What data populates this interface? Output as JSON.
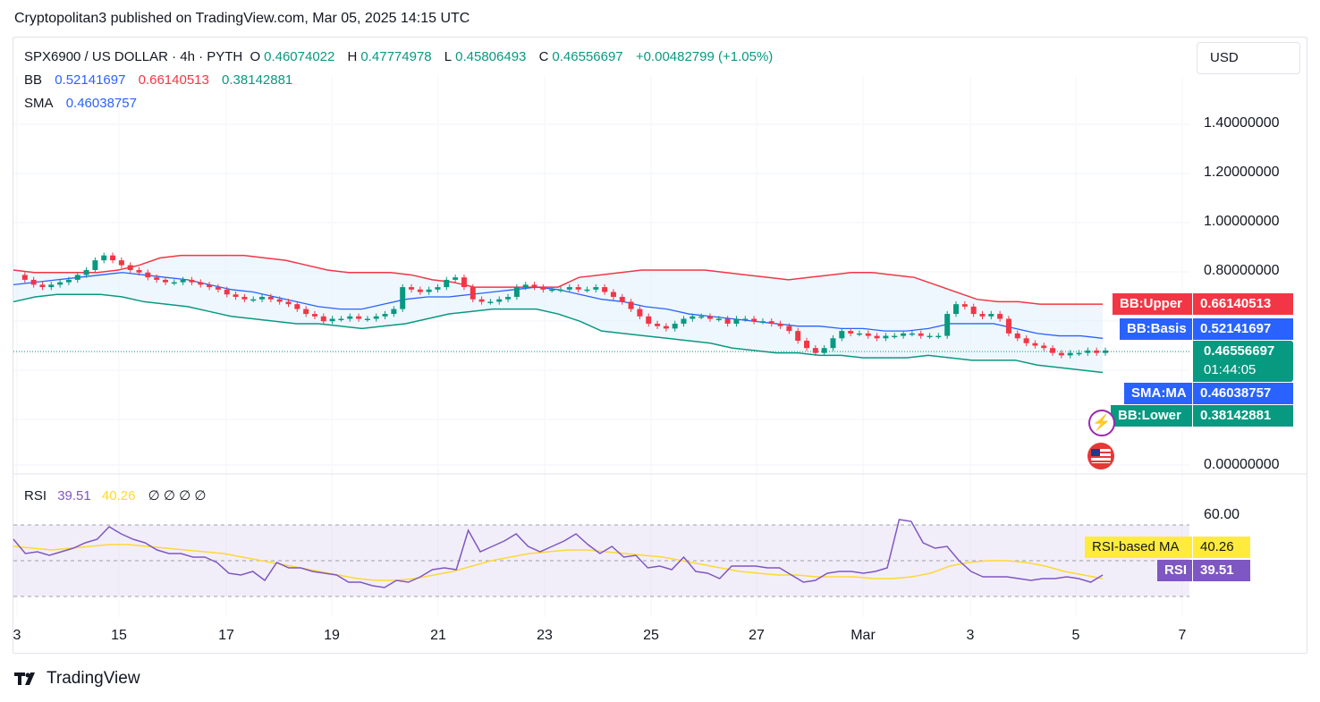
{
  "header": {
    "published": "Cryptopolitan3 published on TradingView.com, Mar 05, 2025 14:15 UTC"
  },
  "legend": {
    "symbol": "SPX6900 / US DOLLAR · 4h · PYTH",
    "o_label": "O",
    "o": "0.46074022",
    "h_label": "H",
    "h": "0.47774978",
    "l_label": "L",
    "l": "0.45806493",
    "c_label": "C",
    "c": "0.46556697",
    "change": "+0.00482799 (+1.05%)",
    "bb_label": "BB",
    "bb_basis": "0.52141697",
    "bb_upper": "0.66140513",
    "bb_lower": "0.38142881",
    "sma_label": "SMA",
    "sma": "0.46038757"
  },
  "currency_button": "USD",
  "price_axis": {
    "ticks": [
      "1.40000000",
      "1.20000000",
      "1.00000000",
      "0.80000000",
      "0.00000000"
    ]
  },
  "price_tags": {
    "bb_upper_label": "BB:Upper",
    "bb_upper_value": "0.66140513",
    "bb_basis_label": "BB:Basis",
    "bb_basis_value": "0.52141697",
    "last_price": "0.46556697",
    "countdown": "01:44:05",
    "sma_label": "SMA:MA",
    "sma_value": "0.46038757",
    "bb_lower_label": "BB:Lower",
    "bb_lower_value": "0.38142881"
  },
  "rsi_panel": {
    "legend_label": "RSI",
    "rsi_value": "39.51",
    "ma_value": "40.26",
    "empty_values": "∅ ∅ ∅ ∅",
    "axis_tick": "60.00",
    "ma_tag_label": "RSI-based MA",
    "ma_tag_value": "40.26",
    "rsi_tag_label": "RSI",
    "rsi_tag_value": "39.51"
  },
  "x_axis": {
    "labels": [
      "3",
      "15",
      "17",
      "19",
      "21",
      "23",
      "25",
      "27",
      "Mar",
      "3",
      "5",
      "7"
    ]
  },
  "footer": {
    "brand": "TradingView"
  },
  "colors": {
    "up": "#089981",
    "down": "#f23645",
    "bb_upper": "#f23645",
    "bb_basis": "#2962ff",
    "bb_lower": "#089981",
    "sma": "#2962ff",
    "rsi": "#7e57c2",
    "rsi_ma": "#fdd835",
    "band_fill": "#e3f2fd"
  },
  "chart_data": {
    "type": "candlestick",
    "interval": "4h",
    "x_axis_labels": [
      "3",
      "15",
      "17",
      "19",
      "21",
      "23",
      "25",
      "27",
      "Mar",
      "3",
      "5",
      "7"
    ],
    "y_axis_ticks": [
      0.0,
      0.8,
      1.0,
      1.2,
      1.4
    ],
    "close_series": [
      0.78,
      0.76,
      0.74,
      0.73,
      0.74,
      0.75,
      0.76,
      0.78,
      0.8,
      0.84,
      0.86,
      0.84,
      0.82,
      0.8,
      0.79,
      0.77,
      0.76,
      0.75,
      0.75,
      0.76,
      0.75,
      0.74,
      0.73,
      0.72,
      0.7,
      0.69,
      0.68,
      0.68,
      0.69,
      0.68,
      0.67,
      0.66,
      0.64,
      0.62,
      0.61,
      0.59,
      0.6,
      0.6,
      0.61,
      0.6,
      0.6,
      0.61,
      0.62,
      0.64,
      0.73,
      0.72,
      0.71,
      0.72,
      0.73,
      0.76,
      0.77,
      0.73,
      0.68,
      0.67,
      0.67,
      0.68,
      0.69,
      0.73,
      0.74,
      0.73,
      0.72,
      0.72,
      0.72,
      0.73,
      0.72,
      0.72,
      0.73,
      0.71,
      0.69,
      0.67,
      0.64,
      0.61,
      0.58,
      0.57,
      0.56,
      0.58,
      0.6,
      0.61,
      0.61,
      0.6,
      0.6,
      0.58,
      0.6,
      0.6,
      0.59,
      0.59,
      0.58,
      0.57,
      0.55,
      0.51,
      0.48,
      0.46,
      0.48,
      0.52,
      0.55,
      0.54,
      0.54,
      0.53,
      0.52,
      0.53,
      0.53,
      0.54,
      0.54,
      0.53,
      0.53,
      0.53,
      0.62,
      0.66,
      0.65,
      0.62,
      0.61,
      0.62,
      0.6,
      0.54,
      0.52,
      0.5,
      0.49,
      0.48,
      0.46,
      0.45,
      0.46,
      0.46,
      0.47,
      0.46,
      0.47
    ],
    "bb_upper_series": [
      0.8,
      0.79,
      0.79,
      0.79,
      0.79,
      0.8,
      0.82,
      0.85,
      0.86,
      0.86,
      0.86,
      0.86,
      0.85,
      0.84,
      0.82,
      0.8,
      0.79,
      0.79,
      0.79,
      0.78,
      0.76,
      0.75,
      0.73,
      0.73,
      0.73,
      0.73,
      0.73,
      0.77,
      0.78,
      0.79,
      0.8,
      0.8,
      0.8,
      0.8,
      0.79,
      0.78,
      0.77,
      0.76,
      0.77,
      0.78,
      0.79,
      0.79,
      0.78,
      0.77,
      0.74,
      0.71,
      0.68,
      0.67,
      0.67,
      0.66,
      0.66,
      0.66,
      0.66
    ],
    "bb_basis_series": [
      0.74,
      0.75,
      0.76,
      0.77,
      0.78,
      0.79,
      0.78,
      0.77,
      0.76,
      0.74,
      0.72,
      0.71,
      0.69,
      0.67,
      0.65,
      0.64,
      0.64,
      0.66,
      0.68,
      0.69,
      0.69,
      0.7,
      0.71,
      0.72,
      0.73,
      0.72,
      0.7,
      0.68,
      0.67,
      0.65,
      0.64,
      0.62,
      0.61,
      0.6,
      0.59,
      0.58,
      0.57,
      0.57,
      0.56,
      0.56,
      0.55,
      0.55,
      0.56,
      0.58,
      0.58,
      0.58,
      0.56,
      0.54,
      0.53,
      0.53,
      0.52
    ],
    "bb_lower_series": [
      0.67,
      0.69,
      0.7,
      0.7,
      0.7,
      0.69,
      0.67,
      0.66,
      0.65,
      0.63,
      0.61,
      0.6,
      0.59,
      0.58,
      0.58,
      0.57,
      0.56,
      0.57,
      0.58,
      0.6,
      0.62,
      0.63,
      0.64,
      0.64,
      0.64,
      0.62,
      0.59,
      0.55,
      0.54,
      0.53,
      0.52,
      0.51,
      0.5,
      0.48,
      0.47,
      0.46,
      0.46,
      0.45,
      0.45,
      0.44,
      0.44,
      0.44,
      0.45,
      0.44,
      0.43,
      0.43,
      0.43,
      0.41,
      0.4,
      0.39,
      0.38
    ],
    "rsi_series": [
      62,
      54,
      55,
      53,
      55,
      57,
      60,
      62,
      69,
      65,
      62,
      60,
      56,
      54,
      54,
      52,
      52,
      49,
      43,
      42,
      44,
      39,
      49,
      46,
      46,
      44,
      43,
      42,
      38,
      38,
      36,
      35,
      39,
      38,
      41,
      45,
      46,
      45,
      67,
      55,
      58,
      61,
      65,
      58,
      55,
      58,
      61,
      65,
      59,
      54,
      58,
      52,
      53,
      46,
      47,
      45,
      52,
      44,
      43,
      40,
      47,
      47,
      47,
      46,
      46,
      42,
      38,
      39,
      43,
      44,
      44,
      43,
      44,
      46,
      73,
      72,
      60,
      57,
      58,
      50,
      44,
      41,
      41,
      41,
      40,
      39,
      40,
      40,
      41,
      40,
      38,
      42
    ],
    "rsi_ma_series": [
      58,
      57,
      56,
      57,
      58,
      59,
      59,
      58,
      57,
      56,
      55,
      54,
      52,
      50,
      48,
      46,
      44,
      42,
      40,
      39,
      39,
      40,
      42,
      44,
      47,
      50,
      52,
      54,
      55,
      56,
      56,
      55,
      54,
      53,
      52,
      50,
      48,
      46,
      44,
      43,
      42,
      42,
      41,
      41,
      41,
      40,
      40,
      41,
      43,
      47,
      49,
      50,
      50,
      49,
      47,
      44,
      42,
      40
    ],
    "rsi_axis_tick": 60.0,
    "series_labels": [
      "BB:Upper",
      "BB:Basis",
      "BB:Lower",
      "SMA:MA",
      "RSI",
      "RSI-based MA"
    ],
    "legend_placement": "top-left",
    "grid": true
  }
}
